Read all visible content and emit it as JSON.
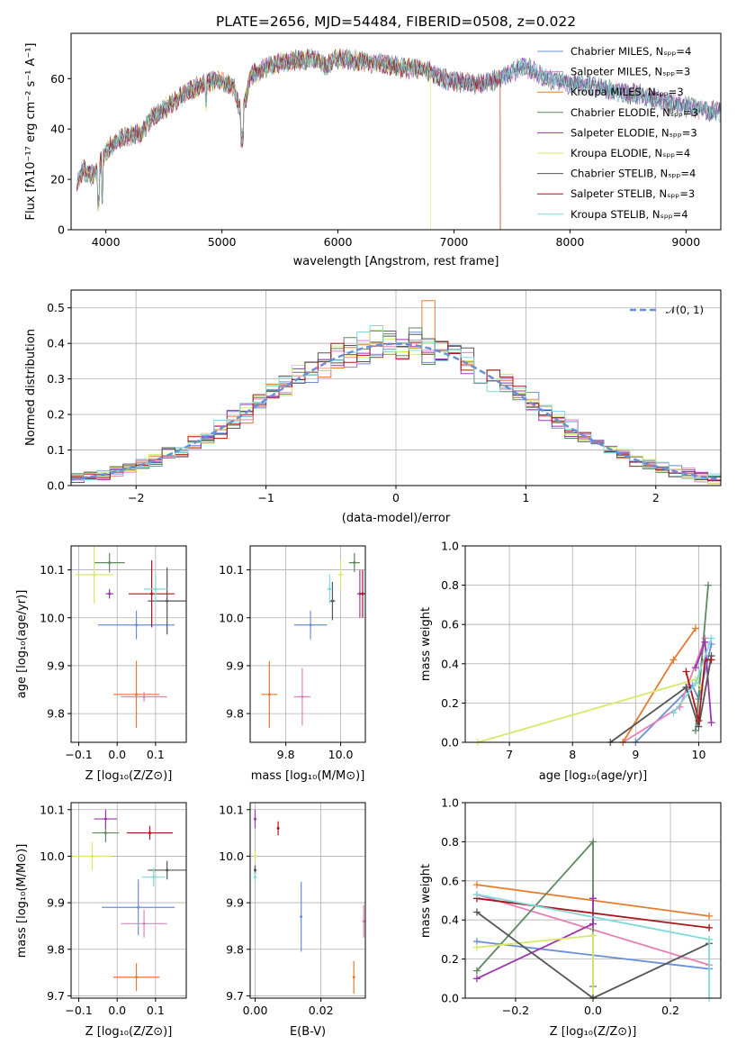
{
  "colors": {
    "chabrier_miles": "#6a8fd8",
    "salpeter_miles": "#e77fb6",
    "kroupa_miles": "#e67a2e",
    "chabrier_elodie": "#5d8a5e",
    "salpeter_elodie": "#9c35b0",
    "kroupa_elodie": "#d9e86a",
    "chabrier_stelib": "#555555",
    "salpeter_stelib": "#a8171d",
    "kroupa_stelib": "#7fd9d9",
    "normal": "#6a8fd8"
  },
  "chart_data": [
    {
      "id": "spectrum",
      "type": "line",
      "title": "PLATE=2656, MJD=54484, FIBERID=0508, z=0.022",
      "xlabel": "wavelength [Angstrom, rest frame]",
      "ylabel": "Flux [fλ10⁻¹⁷ erg cm⁻² s⁻¹ A⁻¹]",
      "xlim": [
        3700,
        9300
      ],
      "ylim": [
        0,
        78
      ],
      "xticks": [
        4000,
        5000,
        6000,
        7000,
        8000,
        9000
      ],
      "yticks": [
        0,
        20,
        40,
        60
      ],
      "grid": false,
      "legend_position": "top-right",
      "legend": [
        {
          "key": "chabrier_miles",
          "label": "Chabrier MILES, Nₛₚₚ=4"
        },
        {
          "key": "salpeter_miles",
          "label": "Salpeter MILES, Nₛₚₚ=3"
        },
        {
          "key": "kroupa_miles",
          "label": "Kroupa MILES, Nₛₚₚ=3"
        },
        {
          "key": "chabrier_elodie",
          "label": "Chabrier ELODIE, Nₛₚₚ=3"
        },
        {
          "key": "salpeter_elodie",
          "label": "Salpeter ELODIE, Nₛₚₚ=3"
        },
        {
          "key": "kroupa_elodie",
          "label": "Kroupa ELODIE, Nₛₚₚ=4"
        },
        {
          "key": "chabrier_stelib",
          "label": "Chabrier STELIB, Nₛₚₚ=4"
        },
        {
          "key": "salpeter_stelib",
          "label": "Salpeter STELIB, Nₛₚₚ=3"
        },
        {
          "key": "kroupa_stelib",
          "label": "Kroupa STELIB, Nₛₚₚ=4"
        }
      ],
      "continuum": [
        [
          3750,
          18
        ],
        [
          3800,
          24
        ],
        [
          3850,
          22
        ],
        [
          3900,
          22
        ],
        [
          3950,
          26
        ],
        [
          4000,
          31
        ],
        [
          4100,
          36
        ],
        [
          4200,
          37
        ],
        [
          4300,
          38
        ],
        [
          4400,
          45
        ],
        [
          4500,
          48
        ],
        [
          4600,
          51
        ],
        [
          4700,
          55
        ],
        [
          4800,
          57
        ],
        [
          4900,
          59
        ],
        [
          5000,
          59
        ],
        [
          5100,
          57
        ],
        [
          5170,
          45
        ],
        [
          5250,
          61
        ],
        [
          5400,
          65
        ],
        [
          5600,
          67
        ],
        [
          5800,
          68
        ],
        [
          5900,
          65
        ],
        [
          6000,
          68
        ],
        [
          6200,
          67
        ],
        [
          6400,
          66
        ],
        [
          6563,
          64
        ],
        [
          6700,
          64
        ],
        [
          6800,
          63
        ],
        [
          6900,
          60
        ],
        [
          7000,
          59
        ],
        [
          7200,
          58
        ],
        [
          7400,
          60
        ],
        [
          7600,
          65
        ],
        [
          7700,
          63
        ],
        [
          7800,
          60
        ],
        [
          8000,
          58
        ],
        [
          8200,
          57
        ],
        [
          8400,
          55
        ],
        [
          8500,
          54
        ],
        [
          8600,
          54
        ],
        [
          8700,
          52
        ],
        [
          8800,
          51
        ],
        [
          9000,
          49
        ],
        [
          9200,
          47
        ]
      ],
      "end_wavelengths": {
        "kroupa_miles": 7400,
        "kroupa_elodie": 6800,
        "salpeter_stelib": 7400
      },
      "model_ends": {
        "stelib_group": 9300
      }
    },
    {
      "id": "residuals",
      "type": "line",
      "xlabel": "(data-model)/error",
      "ylabel": "Normed distribution",
      "xlim": [
        -2.5,
        2.5
      ],
      "ylim": [
        0,
        0.55
      ],
      "xticks": [
        -2,
        -1,
        0,
        1,
        2
      ],
      "yticks": [
        0.0,
        0.1,
        0.2,
        0.3,
        0.4,
        0.5
      ],
      "grid": true,
      "legend_position": "top-right",
      "legend": [
        {
          "key": "normal",
          "label": "𝒩(0, 1)"
        }
      ],
      "bin_width": 0.1,
      "bins_start": -2.5,
      "overlay_series": [
        "kroupa_miles",
        "chabrier_elodie",
        "salpeter_stelib",
        "kroupa_stelib",
        "salpeter_miles",
        "kroupa_elodie"
      ],
      "highlights": [
        {
          "x": 0.25,
          "y": 0.52,
          "series": "kroupa_miles"
        },
        {
          "x": -0.2,
          "y": 0.45,
          "series": "kroupa_stelib"
        }
      ]
    },
    {
      "id": "age_vs_z",
      "type": "scatter",
      "xlabel": "Z [log₁₀(Z/Z⊙)]",
      "ylabel": "age  [log₁₀(age/yr)]",
      "xlim": [
        -0.12,
        0.18
      ],
      "ylim": [
        9.74,
        10.15
      ],
      "xticks": [
        -0.1,
        0.0,
        0.1
      ],
      "yticks": [
        9.8,
        9.9,
        10.0,
        10.1
      ],
      "grid": true,
      "points": [
        {
          "key": "chabrier_miles",
          "x": 0.05,
          "y": 9.985,
          "xerr": 0.1,
          "yerr": 0.03
        },
        {
          "key": "salpeter_miles",
          "x": 0.07,
          "y": 9.835,
          "xerr": 0.06,
          "yerr": 0.01
        },
        {
          "key": "kroupa_miles",
          "x": 0.05,
          "y": 9.84,
          "xerr": 0.06,
          "yerr": 0.07
        },
        {
          "key": "chabrier_elodie",
          "x": -0.02,
          "y": 10.115,
          "xerr": 0.04,
          "yerr": 0.02
        },
        {
          "key": "salpeter_elodie",
          "x": -0.02,
          "y": 10.05,
          "xerr": 0.01,
          "yerr": 0.01
        },
        {
          "key": "kroupa_elodie",
          "x": -0.06,
          "y": 10.09,
          "xerr": 0.05,
          "yerr": 0.06
        },
        {
          "key": "chabrier_stelib",
          "x": 0.13,
          "y": 10.035,
          "xerr": 0.05,
          "yerr": 0.07
        },
        {
          "key": "salpeter_stelib",
          "x": 0.09,
          "y": 10.05,
          "xerr": 0.06,
          "yerr": 0.07
        },
        {
          "key": "kroupa_stelib",
          "x": 0.1,
          "y": 10.06,
          "xerr": 0.03,
          "yerr": 0.03
        }
      ]
    },
    {
      "id": "age_vs_mass",
      "type": "scatter",
      "xlabel": "mass [log₁₀(M/M⊙)]",
      "ylabel": "",
      "xlim": [
        9.67,
        10.09
      ],
      "ylim": [
        9.74,
        10.15
      ],
      "xticks": [
        9.8,
        10.0
      ],
      "yticks": [
        9.8,
        9.9,
        10.0,
        10.1
      ],
      "grid": true,
      "points": [
        {
          "key": "chabrier_miles",
          "x": 9.89,
          "y": 9.985,
          "xerr": 0.06,
          "yerr": 0.03
        },
        {
          "key": "salpeter_miles",
          "x": 9.86,
          "y": 9.835,
          "xerr": 0.03,
          "yerr": 0.06
        },
        {
          "key": "kroupa_miles",
          "x": 9.74,
          "y": 9.84,
          "xerr": 0.03,
          "yerr": 0.07
        },
        {
          "key": "chabrier_elodie",
          "x": 10.05,
          "y": 10.115,
          "xerr": 0.02,
          "yerr": 0.02
        },
        {
          "key": "salpeter_elodie",
          "x": 10.07,
          "y": 10.05,
          "xerr": 0.01,
          "yerr": 0.05
        },
        {
          "key": "kroupa_elodie",
          "x": 10.0,
          "y": 10.09,
          "xerr": 0.01,
          "yerr": 0.03
        },
        {
          "key": "chabrier_stelib",
          "x": 9.97,
          "y": 10.035,
          "xerr": 0.01,
          "yerr": 0.04
        },
        {
          "key": "salpeter_stelib",
          "x": 10.08,
          "y": 10.05,
          "xerr": 0.01,
          "yerr": 0.05
        },
        {
          "key": "kroupa_stelib",
          "x": 9.96,
          "y": 10.06,
          "xerr": 0.01,
          "yerr": 0.03
        }
      ]
    },
    {
      "id": "weight_vs_age",
      "type": "line",
      "xlabel": "age  [log₁₀(age/yr)]",
      "ylabel": "mass weight",
      "xlim": [
        6.3,
        10.35
      ],
      "ylim": [
        0,
        1
      ],
      "xticks": [
        7,
        8,
        9,
        10
      ],
      "yticks": [
        0.0,
        0.2,
        0.4,
        0.6,
        0.8,
        1.0
      ],
      "grid": true,
      "series": [
        {
          "key": "chabrier_miles",
          "x": [
            9.0,
            9.9,
            10.0,
            10.2
          ],
          "y": [
            0.0,
            0.29,
            0.22,
            0.5
          ]
        },
        {
          "key": "salpeter_miles",
          "x": [
            8.8,
            9.7,
            10.1
          ],
          "y": [
            0.0,
            0.18,
            0.53
          ]
        },
        {
          "key": "kroupa_miles",
          "x": [
            8.8,
            9.6,
            9.95
          ],
          "y": [
            0.0,
            0.42,
            0.58
          ]
        },
        {
          "key": "chabrier_elodie",
          "x": [
            9.95,
            10.15
          ],
          "y": [
            0.06,
            0.8
          ]
        },
        {
          "key": "salpeter_elodie",
          "x": [
            9.95,
            10.1,
            10.2
          ],
          "y": [
            0.38,
            0.51,
            0.1
          ]
        },
        {
          "key": "kroupa_elodie",
          "x": [
            6.5,
            9.95,
            10.05
          ],
          "y": [
            0.0,
            0.32,
            0.27
          ]
        },
        {
          "key": "chabrier_stelib",
          "x": [
            8.6,
            9.8,
            10.0,
            10.2
          ],
          "y": [
            0.0,
            0.28,
            0.08,
            0.44
          ]
        },
        {
          "key": "salpeter_stelib",
          "x": [
            9.8,
            10.0,
            10.1,
            10.2
          ],
          "y": [
            0.36,
            0.11,
            0.42,
            0.42
          ]
        },
        {
          "key": "kroupa_stelib",
          "x": [
            9.6,
            9.95,
            10.2
          ],
          "y": [
            0.15,
            0.3,
            0.53
          ]
        }
      ]
    },
    {
      "id": "mass_vs_z",
      "type": "scatter",
      "xlabel": "Z [log₁₀(Z/Z⊙)]",
      "ylabel": "mass [log₁₀(M/M⊙)]",
      "xlim": [
        -0.12,
        0.18
      ],
      "ylim": [
        9.695,
        10.115
      ],
      "xticks": [
        -0.1,
        0.0,
        0.1
      ],
      "yticks": [
        9.7,
        9.8,
        9.9,
        10.0,
        10.1
      ],
      "grid": true,
      "points": [
        {
          "key": "chabrier_miles",
          "x": 0.055,
          "y": 9.89,
          "xerr": 0.095,
          "yerr": 0.06
        },
        {
          "key": "salpeter_miles",
          "x": 0.07,
          "y": 9.855,
          "xerr": 0.06,
          "yerr": 0.03
        },
        {
          "key": "kroupa_miles",
          "x": 0.05,
          "y": 9.74,
          "xerr": 0.06,
          "yerr": 0.03
        },
        {
          "key": "chabrier_elodie",
          "x": -0.03,
          "y": 10.05,
          "xerr": 0.035,
          "yerr": 0.02
        },
        {
          "key": "salpeter_elodie",
          "x": -0.03,
          "y": 10.08,
          "xerr": 0.03,
          "yerr": 0.02
        },
        {
          "key": "kroupa_elodie",
          "x": -0.065,
          "y": 10.0,
          "xerr": 0.05,
          "yerr": 0.03
        },
        {
          "key": "chabrier_stelib",
          "x": 0.13,
          "y": 9.97,
          "xerr": 0.05,
          "yerr": 0.02
        },
        {
          "key": "salpeter_stelib",
          "x": 0.085,
          "y": 10.05,
          "xerr": 0.06,
          "yerr": 0.015
        },
        {
          "key": "kroupa_stelib",
          "x": 0.095,
          "y": 9.955,
          "xerr": 0.03,
          "yerr": 0.02
        }
      ]
    },
    {
      "id": "mass_vs_ebv",
      "type": "scatter",
      "xlabel": "E(B-V)",
      "ylabel": "",
      "xlim": [
        -0.0015,
        0.0335
      ],
      "ylim": [
        9.695,
        10.115
      ],
      "xticks": [
        0.0,
        0.02
      ],
      "yticks": [
        9.7,
        9.8,
        9.9,
        10.0,
        10.1
      ],
      "grid": true,
      "points": [
        {
          "key": "chabrier_miles",
          "x": 0.014,
          "y": 9.87,
          "xerr": 0.0,
          "yerr": 0.075
        },
        {
          "key": "salpeter_miles",
          "x": 0.033,
          "y": 9.86,
          "xerr": 0.0,
          "yerr": 0.035
        },
        {
          "key": "kroupa_miles",
          "x": 0.03,
          "y": 9.74,
          "xerr": 0.0,
          "yerr": 0.035
        },
        {
          "key": "chabrier_elodie",
          "x": 0.0,
          "y": 9.97,
          "xerr": 0.0,
          "yerr": 0.01
        },
        {
          "key": "salpeter_elodie",
          "x": 0.0,
          "y": 10.08,
          "xerr": 0.0,
          "yerr": 0.02
        },
        {
          "key": "kroupa_elodie",
          "x": 0.0,
          "y": 10.0,
          "xerr": 0.0,
          "yerr": 0.01
        },
        {
          "key": "chabrier_stelib",
          "x": 0.0,
          "y": 9.97,
          "xerr": 0.0,
          "yerr": 0.01
        },
        {
          "key": "salpeter_stelib",
          "x": 0.007,
          "y": 10.06,
          "xerr": 0.0,
          "yerr": 0.015
        },
        {
          "key": "kroupa_stelib",
          "x": 0.0,
          "y": 9.955,
          "xerr": 0.0,
          "yerr": 0.01
        }
      ]
    },
    {
      "id": "weight_vs_z",
      "type": "line",
      "xlabel": "Z [log₁₀(Z/Z⊙)]",
      "ylabel": "mass weight",
      "xlim": [
        -0.33,
        0.33
      ],
      "ylim": [
        0,
        1
      ],
      "xticks": [
        -0.2,
        0.0,
        0.2
      ],
      "yticks": [
        0.0,
        0.2,
        0.4,
        0.6,
        0.8,
        1.0
      ],
      "grid": true,
      "series": [
        {
          "key": "chabrier_miles",
          "x": [
            -0.3,
            0.3
          ],
          "y": [
            0.29,
            0.15
          ]
        },
        {
          "key": "salpeter_miles",
          "x": [
            -0.3,
            0.3
          ],
          "y": [
            0.53,
            0.17
          ]
        },
        {
          "key": "kroupa_miles",
          "x": [
            -0.3,
            0.3
          ],
          "y": [
            0.58,
            0.42
          ]
        },
        {
          "key": "chabrier_elodie",
          "x": [
            -0.3,
            0.0,
            0.0
          ],
          "y": [
            0.14,
            0.8,
            0.06
          ]
        },
        {
          "key": "salpeter_elodie",
          "x": [
            -0.3,
            0.0,
            0.0
          ],
          "y": [
            0.1,
            0.38,
            0.51
          ]
        },
        {
          "key": "kroupa_elodie",
          "x": [
            -0.3,
            0.0,
            0.0
          ],
          "y": [
            0.26,
            0.32,
            0.0
          ]
        },
        {
          "key": "chabrier_stelib",
          "x": [
            -0.3,
            0.0,
            0.3
          ],
          "y": [
            0.44,
            0.0,
            0.28
          ]
        },
        {
          "key": "salpeter_stelib",
          "x": [
            -0.3,
            0.3
          ],
          "y": [
            0.51,
            0.36
          ]
        },
        {
          "key": "kroupa_stelib",
          "x": [
            -0.3,
            0.3,
            0.3
          ],
          "y": [
            0.53,
            0.3,
            0.0
          ]
        }
      ]
    }
  ]
}
